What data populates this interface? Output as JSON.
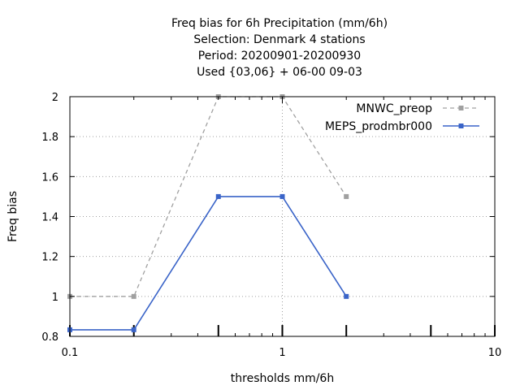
{
  "chart_data": {
    "type": "line",
    "title_lines": [
      "Freq bias  for 6h Precipitation (mm/6h)",
      "Selection: Denmark      4 stations",
      "Period: 20200901-20200930",
      "Used {03,06} + 06-00 09-03"
    ],
    "xlabel": "thresholds mm/6h",
    "ylabel": "Freq bias",
    "x_scale": "log",
    "xlim": [
      0.1,
      10
    ],
    "ylim": [
      0.8,
      2.0
    ],
    "x_ticks": [
      0.1,
      1,
      10
    ],
    "x_tick_labels": [
      "0.1",
      "1",
      "10"
    ],
    "y_ticks": [
      0.8,
      1.0,
      1.2,
      1.4,
      1.6,
      1.8,
      2.0
    ],
    "y_tick_labels": [
      "0.8",
      "1",
      "1.2",
      "1.4",
      "1.6",
      "1.8",
      "2"
    ],
    "threshold_marks": [
      0.1,
      0.2,
      0.5,
      1,
      2,
      5,
      10
    ],
    "grid": true,
    "legend_position": "top-right",
    "series": [
      {
        "name": "MNWC_preop",
        "color": "#a0a0a0",
        "dash": "dashed",
        "x": [
          0.1,
          0.2,
          0.5,
          1,
          2
        ],
        "y": [
          1.0,
          1.0,
          2.0,
          2.0,
          1.5
        ]
      },
      {
        "name": "MEPS_prodmbr000",
        "color": "#3a64c8",
        "dash": "solid",
        "x": [
          0.1,
          0.2,
          0.5,
          1,
          2
        ],
        "y": [
          0.833,
          0.833,
          1.5,
          1.5,
          1.0
        ]
      }
    ]
  }
}
